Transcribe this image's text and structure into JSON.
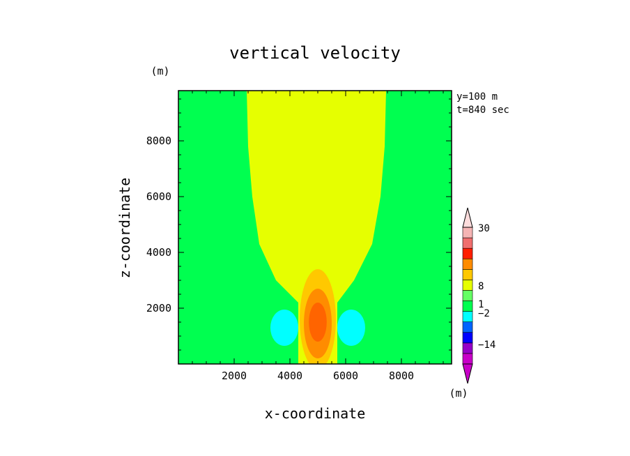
{
  "chart_data": {
    "type": "heatmap",
    "title": "vertical velocity",
    "xlabel": "x-coordinate",
    "ylabel": "z-coordinate",
    "x_unit": "(m)",
    "y_unit": "(m)",
    "xlim": [
      0,
      9800
    ],
    "ylim": [
      0,
      9800
    ],
    "xticks": [
      2000,
      4000,
      6000,
      8000
    ],
    "yticks": [
      2000,
      4000,
      6000,
      8000
    ],
    "xticklabels": [
      "2000",
      "4000",
      "6000",
      "8000"
    ],
    "yticklabels": [
      "2000",
      "4000",
      "6000",
      "8000"
    ],
    "annotations": [
      "y=100 m",
      "t=840 sec"
    ],
    "colorbar": {
      "unit": "(m)",
      "labels": [
        "30",
        "8",
        "1",
        "−2",
        "−14"
      ],
      "label_values": [
        30,
        8,
        1,
        -2,
        -14
      ],
      "colors": [
        "#c800c8",
        "#9600c8",
        "#0000ff",
        "#0064ff",
        "#00ffff",
        "#00ff50",
        "#64ff64",
        "#e6ff00",
        "#ffc800",
        "#ff8c00",
        "#ff1e00",
        "#f06e6e",
        "#f5b4b4"
      ],
      "under_color": "#c800c8",
      "over_color": "#fcdcdc"
    },
    "fields": {
      "background": {
        "color": "#00ff50"
      },
      "updraft_plume": {
        "color": "#e6ff00",
        "outline": [
          [
            4300,
            0
          ],
          [
            4300,
            2200
          ],
          [
            3500,
            3000
          ],
          [
            2900,
            4300
          ],
          [
            2650,
            6000
          ],
          [
            2500,
            7800
          ],
          [
            2450,
            9800
          ],
          [
            7450,
            9800
          ],
          [
            7400,
            7800
          ],
          [
            7250,
            6000
          ],
          [
            6950,
            4300
          ],
          [
            6300,
            3000
          ],
          [
            5700,
            2200
          ],
          [
            5700,
            0
          ]
        ]
      },
      "updraft_core": [
        {
          "level": "1–8",
          "color": "#ffc800",
          "center": [
            5000,
            1600
          ],
          "x_radius": 650,
          "y_radius": 1800
        },
        {
          "level": "8–14",
          "color": "#ff8c00",
          "center": [
            5000,
            1450
          ],
          "x_radius": 500,
          "y_radius": 1250
        },
        {
          "level": "14–20",
          "color": "#ff6400",
          "center": [
            5000,
            1500
          ],
          "x_radius": 320,
          "y_radius": 700
        }
      ],
      "downdrafts": [
        {
          "color": "#00ffff",
          "center": [
            3800,
            1300
          ],
          "x_radius": 500,
          "y_radius": 650
        },
        {
          "color": "#00ffff",
          "center": [
            6200,
            1300
          ],
          "x_radius": 500,
          "y_radius": 650
        }
      ]
    }
  }
}
